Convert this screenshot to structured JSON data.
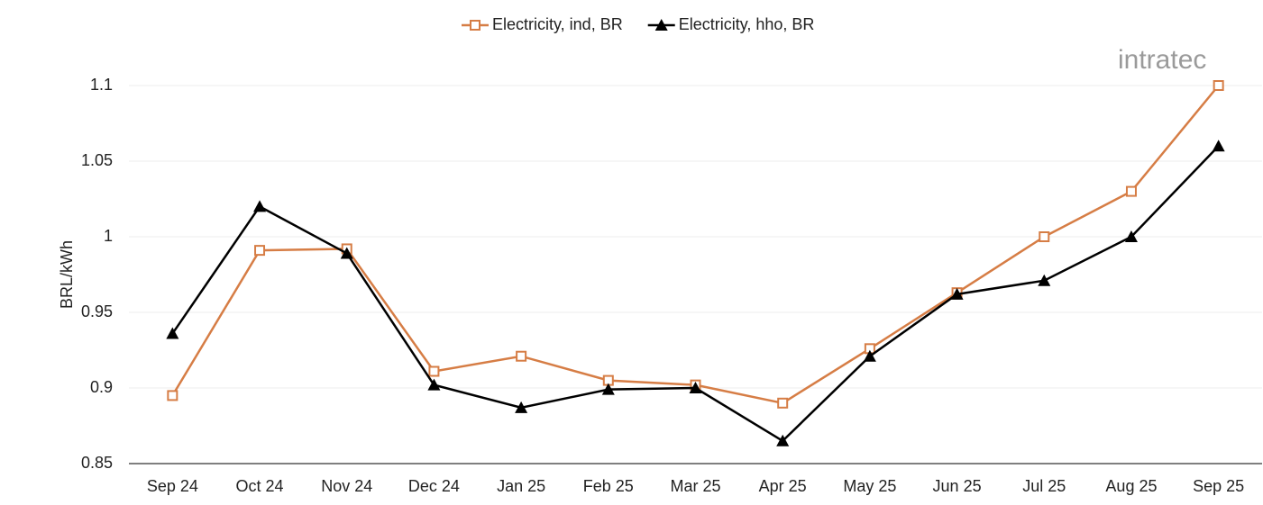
{
  "chart_data": {
    "type": "line",
    "y_label": "BRL/kWh",
    "watermark": "intratec",
    "categories": [
      "Sep 24",
      "Oct 24",
      "Nov 24",
      "Dec 24",
      "Jan 25",
      "Feb 25",
      "Mar 25",
      "Apr 25",
      "May 25",
      "Jun 25",
      "Jul 25",
      "Aug 25",
      "Sep 25"
    ],
    "series": [
      {
        "name": "Electricity, ind, BR",
        "color": "#d67d45",
        "marker": "square-open",
        "values": [
          0.895,
          0.991,
          0.992,
          0.911,
          0.921,
          0.905,
          0.902,
          0.89,
          0.926,
          0.963,
          1.0,
          1.03,
          1.1
        ]
      },
      {
        "name": "Electricity, hho, BR",
        "color": "#000000",
        "marker": "triangle",
        "values": [
          0.936,
          1.02,
          0.989,
          0.902,
          0.887,
          0.899,
          0.9,
          0.865,
          0.921,
          0.962,
          0.971,
          1.0,
          1.06
        ]
      }
    ],
    "ylim": [
      0.85,
      1.1
    ],
    "yticks": [
      0.85,
      0.9,
      0.95,
      1,
      1.05,
      1.1
    ],
    "grid": true,
    "legend": "top"
  }
}
